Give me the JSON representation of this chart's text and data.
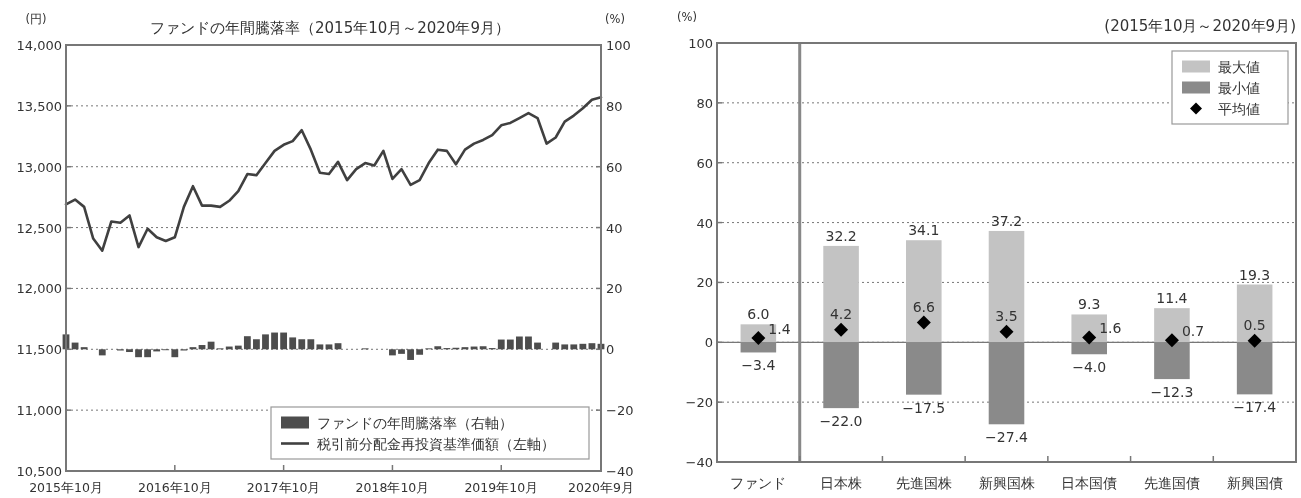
{
  "chart_data": [
    {
      "type": "bar",
      "title": "ファンドの年間騰落率（2015年10月～2020年9月）",
      "ylabel": "(円)",
      "y2label": "(%)",
      "x": [
        "2015-10",
        "2015-11",
        "2015-12",
        "2016-01",
        "2016-02",
        "2016-03",
        "2016-04",
        "2016-05",
        "2016-06",
        "2016-07",
        "2016-08",
        "2016-09",
        "2016-10",
        "2016-11",
        "2016-12",
        "2017-01",
        "2017-02",
        "2017-03",
        "2017-04",
        "2017-05",
        "2017-06",
        "2017-07",
        "2017-08",
        "2017-09",
        "2017-10",
        "2017-11",
        "2017-12",
        "2018-01",
        "2018-02",
        "2018-03",
        "2018-04",
        "2018-05",
        "2018-06",
        "2018-07",
        "2018-08",
        "2018-09",
        "2018-10",
        "2018-11",
        "2018-12",
        "2019-01",
        "2019-02",
        "2019-03",
        "2019-04",
        "2019-05",
        "2019-06",
        "2019-07",
        "2019-08",
        "2019-09",
        "2019-10",
        "2019-11",
        "2019-12",
        "2020-01",
        "2020-02",
        "2020-03",
        "2020-04",
        "2020-05",
        "2020-06",
        "2020-07",
        "2020-08",
        "2020-09"
      ],
      "xlim": [
        "2015-10",
        "2020-09"
      ],
      "xticks": [
        {
          "value": "2015-10",
          "label": "2015年10月"
        },
        {
          "value": "2016-10",
          "label": "2016年10月"
        },
        {
          "value": "2017-10",
          "label": "2017年10月"
        },
        {
          "value": "2018-10",
          "label": "2018年10月"
        },
        {
          "value": "2019-10",
          "label": "2019年10月"
        },
        {
          "value": "2020-09",
          "label": "2020年9月"
        }
      ],
      "ylim": [
        10500,
        14000
      ],
      "yticks": [
        {
          "value": 10500,
          "label": "10,500"
        },
        {
          "value": 11000,
          "label": "11,000"
        },
        {
          "value": 11500,
          "label": "11,500"
        },
        {
          "value": 12000,
          "label": "12,000"
        },
        {
          "value": 12500,
          "label": "12,500"
        },
        {
          "value": 13000,
          "label": "13,000"
        },
        {
          "value": 13500,
          "label": "13,500"
        },
        {
          "value": 14000,
          "label": "14,000"
        }
      ],
      "y2lim": [
        -40,
        100
      ],
      "y2ticks": [
        {
          "value": -40,
          "label": "−40"
        },
        {
          "value": -20,
          "label": "−20"
        },
        0,
        20,
        40,
        60,
        80,
        100
      ],
      "grid": "y",
      "legend": "bottom right",
      "series": [
        {
          "name": "ファンドの年間騰落率（右軸）",
          "type": "bar",
          "axis": "y2",
          "color": "#4d4d4d",
          "values": [
            4.9,
            2.2,
            0.7,
            0,
            -2.0,
            0,
            -0.4,
            -0.9,
            -2.6,
            -2.6,
            -0.7,
            -0.3,
            -2.6,
            -0.4,
            0.7,
            1.4,
            2.5,
            0.3,
            0.9,
            1.2,
            4.3,
            3.3,
            4.9,
            5.5,
            5.5,
            3.9,
            3.3,
            3.3,
            1.6,
            1.6,
            2.0,
            0,
            0,
            0.3,
            0,
            0,
            -2.0,
            -1.5,
            -3.5,
            -1.8,
            0.3,
            1.0,
            0.4,
            0.5,
            0.7,
            0.9,
            1.0,
            0.4,
            3.2,
            3.2,
            4.2,
            4.2,
            2.2,
            0,
            2.2,
            1.6,
            1.6,
            1.8,
            2.0,
            1.8
          ]
        },
        {
          "name": "税引前分配金再投資基準価額（左軸）",
          "type": "line",
          "color": "#404040",
          "values": [
            12690,
            12730,
            12670,
            12410,
            12310,
            12550,
            12540,
            12600,
            12340,
            12490,
            12420,
            12390,
            12420,
            12670,
            12840,
            12680,
            12680,
            12670,
            12720,
            12800,
            12940,
            12930,
            13030,
            13130,
            13180,
            13210,
            13300,
            13140,
            12950,
            12940,
            13040,
            12890,
            12980,
            13030,
            13010,
            13130,
            12900,
            12980,
            12850,
            12890,
            13030,
            13140,
            13130,
            13020,
            13140,
            13190,
            13220,
            13260,
            13340,
            13360,
            13400,
            13440,
            13400,
            13190,
            13240,
            13370,
            13420,
            13480,
            13550,
            13570
          ]
        }
      ]
    },
    {
      "type": "bar",
      "title": "(2015年10月～2020年9月)",
      "ylabel": "(%)",
      "categories": [
        "ファンド",
        "日本株",
        "先進国株",
        "新興国株",
        "日本国債",
        "先進国債",
        "新興国債"
      ],
      "ylim": [
        -40,
        100
      ],
      "yticks": [
        {
          "value": -40,
          "label": "−40"
        },
        {
          "value": -20,
          "label": "−20"
        },
        0,
        20,
        40,
        60,
        80,
        100
      ],
      "grid": "y",
      "legend": "top right",
      "stacked": true,
      "ref_lines": [
        {
          "axis": "y",
          "value": 0
        }
      ],
      "series": [
        {
          "name": "最大値",
          "color": "#c3c3c3",
          "values": [
            6.0,
            32.2,
            34.1,
            37.2,
            9.3,
            11.4,
            19.3
          ],
          "value_labels": [
            "6.0",
            "32.2",
            "34.1",
            "37.2",
            "9.3",
            "11.4",
            "19.3"
          ]
        },
        {
          "name": "最小値",
          "color": "#8a8a8a",
          "values": [
            -3.4,
            -22.0,
            -17.5,
            -27.4,
            -4.0,
            -12.3,
            -17.4
          ],
          "value_labels": [
            "−3.4",
            "−22.0",
            "−17.5",
            "−27.4",
            "−4.0",
            "−12.3",
            "−17.4"
          ]
        },
        {
          "name": "平均値",
          "type": "scatter",
          "marker": "diamond",
          "color": "#000000",
          "values": [
            1.4,
            4.2,
            6.6,
            3.5,
            1.6,
            0.7,
            0.5
          ],
          "value_labels": [
            "1.4",
            "4.2",
            "6.6",
            "3.5",
            "1.6",
            "0.7",
            "0.5"
          ]
        }
      ]
    }
  ]
}
